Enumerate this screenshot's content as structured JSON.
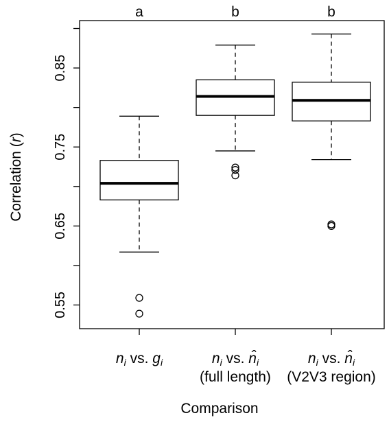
{
  "chart_data": {
    "type": "boxplot",
    "title": "",
    "xlabel": "Comparison",
    "ylabel": {
      "main": "Correlation (",
      "var": "r",
      "close": ")"
    },
    "ylim": [
      0.52,
      0.91
    ],
    "yticks": [
      0.55,
      0.6,
      0.65,
      0.7,
      0.75,
      0.8,
      0.85,
      0.9
    ],
    "ytick_labels": [
      "0.55",
      "",
      "0.65",
      "",
      "0.75",
      "",
      "0.85",
      ""
    ],
    "grid": false,
    "categories": [
      {
        "line1": [
          {
            "text": "n",
            "italic": true
          },
          {
            "text": "i",
            "sub": true,
            "italic": true
          },
          {
            "text": " vs. ",
            "italic": false
          },
          {
            "text": "g",
            "italic": true
          },
          {
            "text": "i",
            "sub": true,
            "italic": true
          }
        ],
        "line2": ""
      },
      {
        "line1": [
          {
            "text": "n",
            "italic": true
          },
          {
            "text": "i",
            "sub": true,
            "italic": true
          },
          {
            "text": " vs. ",
            "italic": false
          },
          {
            "text": "n̂",
            "italic": true
          },
          {
            "text": "i",
            "sub": true,
            "italic": true
          }
        ],
        "line2": "(full length)"
      },
      {
        "line1": [
          {
            "text": "n",
            "italic": true
          },
          {
            "text": "i",
            "sub": true,
            "italic": true
          },
          {
            "text": " vs. ",
            "italic": false
          },
          {
            "text": "n̂",
            "italic": true
          },
          {
            "text": "i",
            "sub": true,
            "italic": true
          }
        ],
        "line2": "(V2V3 region)"
      }
    ],
    "series": [
      {
        "min": 0.617,
        "q1": 0.683,
        "median": 0.704,
        "q3": 0.733,
        "max": 0.789,
        "outliers": [
          0.559,
          0.539
        ],
        "significance": "a"
      },
      {
        "min": 0.745,
        "q1": 0.79,
        "median": 0.814,
        "q3": 0.835,
        "max": 0.879,
        "outliers": [
          0.724,
          0.721,
          0.714
        ],
        "significance": "b"
      },
      {
        "min": 0.734,
        "q1": 0.783,
        "median": 0.809,
        "q3": 0.832,
        "max": 0.893,
        "outliers": [
          0.652,
          0.65
        ],
        "significance": "b"
      }
    ]
  }
}
